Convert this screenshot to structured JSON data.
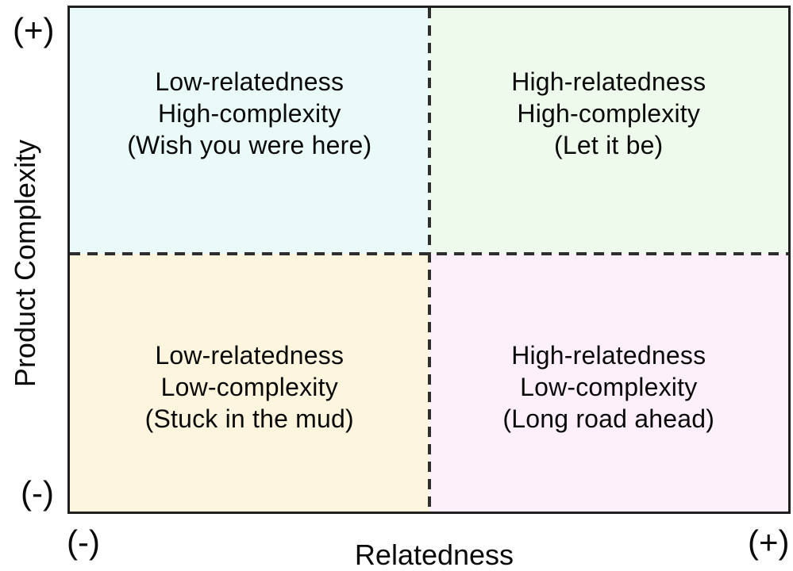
{
  "axes": {
    "y": {
      "label": "Product Complexity",
      "plus": "(+)",
      "minus": "(-)"
    },
    "x": {
      "label": "Relatedness",
      "plus": "(+)",
      "minus": "(-)"
    }
  },
  "quadrants": {
    "top_left": {
      "lines": [
        "Low-relatedness",
        "High-complexity",
        "(Wish you were here)"
      ],
      "bg": "#e9faf8"
    },
    "top_right": {
      "lines": [
        "High-relatedness",
        "High-complexity",
        "(Let it be)"
      ],
      "bg": "#eefaec"
    },
    "bottom_left": {
      "lines": [
        "Low-relatedness",
        "Low-complexity",
        "(Stuck in the mud)"
      ],
      "bg": "#fdf5de"
    },
    "bottom_right": {
      "lines": [
        "High-relatedness",
        "Low-complexity",
        "(Long road ahead)"
      ],
      "bg": "#fdf0fa"
    }
  },
  "style": {
    "border_color": "#1f1f1f",
    "dash_color": "#2e2e2e",
    "text_color": "#0a0a0a"
  }
}
